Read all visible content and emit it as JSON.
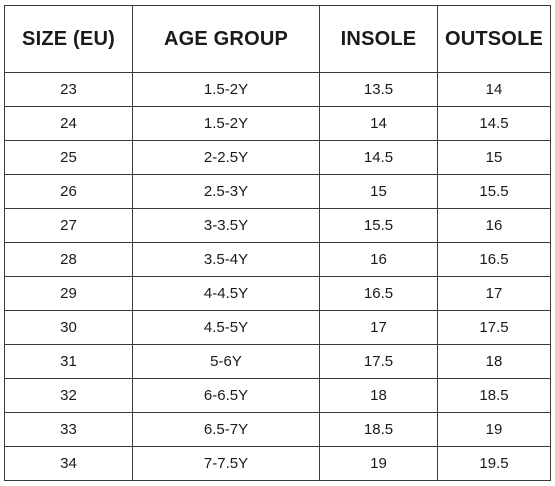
{
  "table": {
    "headers": [
      "SIZE (EU)",
      "AGE GROUP",
      "INSOLE",
      "OUTSOLE"
    ],
    "rows": [
      [
        "23",
        "1.5-2Y",
        "13.5",
        "14"
      ],
      [
        "24",
        "1.5-2Y",
        "14",
        "14.5"
      ],
      [
        "25",
        "2-2.5Y",
        "14.5",
        "15"
      ],
      [
        "26",
        "2.5-3Y",
        "15",
        "15.5"
      ],
      [
        "27",
        "3-3.5Y",
        "15.5",
        "16"
      ],
      [
        "28",
        "3.5-4Y",
        "16",
        "16.5"
      ],
      [
        "29",
        "4-4.5Y",
        "16.5",
        "17"
      ],
      [
        "30",
        "4.5-5Y",
        "17",
        "17.5"
      ],
      [
        "31",
        "5-6Y",
        "17.5",
        "18"
      ],
      [
        "32",
        "6-6.5Y",
        "18",
        "18.5"
      ],
      [
        "33",
        "6.5-7Y",
        "18.5",
        "19"
      ],
      [
        "34",
        "7-7.5Y",
        "19",
        "19.5"
      ]
    ]
  }
}
